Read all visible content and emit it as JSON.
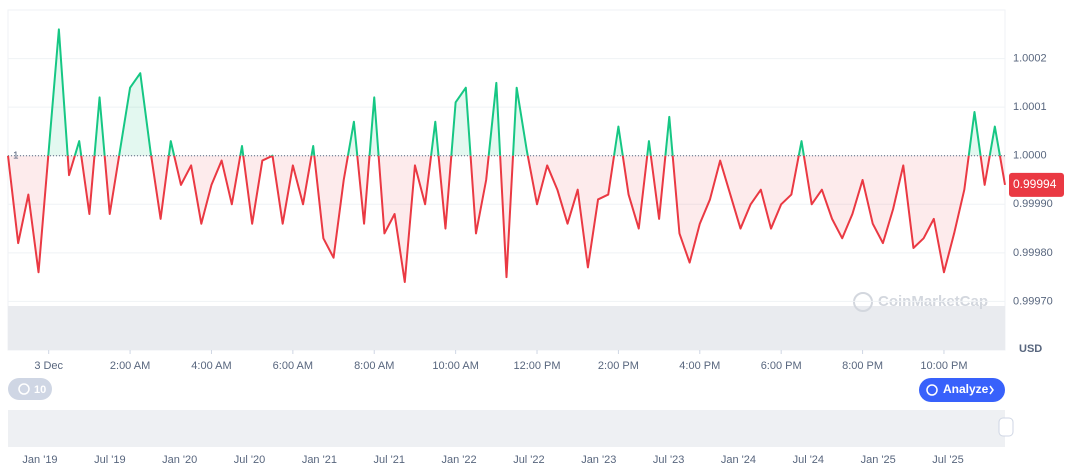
{
  "chart_data": {
    "type": "line",
    "currency": "USD",
    "watermark": "CoinMarketCap",
    "baseline": 1,
    "last_price": {
      "value": 0.99994,
      "label": "0.99994"
    },
    "up_color": "#16c784",
    "down_color": "#ea3943",
    "x": [
      -1,
      -0.75,
      -0.5,
      -0.25,
      0,
      0.25,
      0.5,
      0.75,
      1,
      1.25,
      1.5,
      1.75,
      2,
      2.25,
      2.5,
      2.75,
      3,
      3.25,
      3.5,
      3.75,
      4,
      4.25,
      4.5,
      4.75,
      5,
      5.25,
      5.5,
      5.75,
      6,
      6.25,
      6.5,
      6.75,
      7,
      7.25,
      7.5,
      7.75,
      8,
      8.25,
      8.5,
      8.75,
      9,
      9.25,
      9.5,
      9.75,
      10,
      10.25,
      10.5,
      10.75,
      11,
      11.25,
      11.5,
      11.75,
      12,
      12.25,
      12.5,
      12.75,
      13,
      13.25,
      13.5,
      13.75,
      14,
      14.25,
      14.5,
      14.75,
      15,
      15.25,
      15.5,
      15.75,
      16,
      16.25,
      16.5,
      16.75,
      17,
      17.25,
      17.5,
      17.75,
      18,
      18.25,
      18.5,
      18.75,
      19,
      19.25,
      19.5,
      19.75,
      20,
      20.25,
      20.5,
      20.75,
      21,
      21.25,
      21.5,
      21.75,
      22,
      22.25,
      22.5,
      22.75,
      23,
      23.25,
      23.5
    ],
    "values": [
      1.0,
      0.99982,
      0.99992,
      0.99976,
      1.00001,
      1.00026,
      0.99996,
      1.00003,
      0.99988,
      1.00012,
      0.99988,
      1.00001,
      1.00014,
      1.00017,
      1.00001,
      0.99987,
      1.00003,
      0.99994,
      0.99998,
      0.99986,
      0.99994,
      0.99999,
      0.9999,
      1.00002,
      0.99986,
      0.99999,
      1.0,
      0.99986,
      0.99998,
      0.9999,
      1.00002,
      0.99983,
      0.99979,
      0.99995,
      1.00007,
      0.99986,
      1.00012,
      0.99984,
      0.99988,
      0.99974,
      0.99998,
      0.9999,
      1.00007,
      0.99985,
      1.00011,
      1.00014,
      0.99984,
      0.99995,
      1.00015,
      0.99975,
      1.00014,
      1.00001,
      0.9999,
      0.99998,
      0.99993,
      0.99986,
      0.99993,
      0.99977,
      0.99991,
      0.99992,
      1.00006,
      0.99992,
      0.99985,
      1.00003,
      0.99987,
      1.00008,
      0.99984,
      0.99978,
      0.99986,
      0.99991,
      0.99999,
      0.99992,
      0.99985,
      0.9999,
      0.99993,
      0.99985,
      0.9999,
      0.99992,
      1.00003,
      0.9999,
      0.99993,
      0.99987,
      0.99983,
      0.99988,
      0.99995,
      0.99986,
      0.99982,
      0.99989,
      0.99998,
      0.99981,
      0.99983,
      0.99987,
      0.99976,
      0.99984,
      0.99993,
      1.00009,
      0.99994,
      1.00006,
      0.99994
    ],
    "xlim": [
      -1,
      23.5
    ],
    "xticks": [
      {
        "value": 0,
        "label": "3 Dec"
      },
      {
        "value": 2,
        "label": "2:00 AM"
      },
      {
        "value": 4,
        "label": "4:00 AM"
      },
      {
        "value": 6,
        "label": "6:00 AM"
      },
      {
        "value": 8,
        "label": "8:00 AM"
      },
      {
        "value": 10,
        "label": "10:00 AM"
      },
      {
        "value": 12,
        "label": "12:00 PM"
      },
      {
        "value": 14,
        "label": "2:00 PM"
      },
      {
        "value": 16,
        "label": "4:00 PM"
      },
      {
        "value": 18,
        "label": "6:00 PM"
      },
      {
        "value": 20,
        "label": "8:00 PM"
      },
      {
        "value": 22,
        "label": "10:00 PM"
      }
    ],
    "ylim": [
      0.9996,
      1.0003
    ],
    "yticks": [
      {
        "value": 0.9997,
        "label": "0.99970"
      },
      {
        "value": 0.9998,
        "label": "0.99980"
      },
      {
        "value": 0.9999,
        "label": "0.99990"
      },
      {
        "value": 1,
        "label": "1.0000"
      },
      1.0001,
      1.0002
    ],
    "grid": true,
    "navigator_labels": [
      "Jan '19",
      "Jul '19",
      "Jan '20",
      "Jul '20",
      "Jan '21",
      "Jul '21",
      "Jan '22",
      "Jul '22",
      "Jan '23",
      "Jul '23",
      "Jan '24",
      "Jul '24",
      "Jan '25",
      "Jul '25"
    ]
  },
  "controls": {
    "history_button": "10",
    "analyze_button": "Analyze"
  }
}
